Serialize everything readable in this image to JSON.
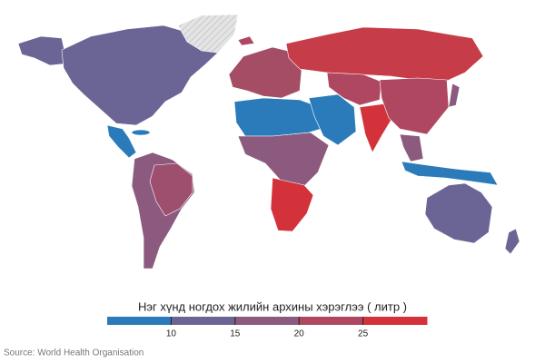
{
  "legend": {
    "title": "Нэг хүнд ногдох жилийн архины хэрэглээ ( литр )",
    "lim": [
      5,
      30
    ],
    "ticks": [
      10,
      15,
      20,
      25
    ],
    "colors": [
      "#2b7bba",
      "#6b6596",
      "#8c5a7f",
      "#b04760",
      "#d4323a"
    ]
  },
  "source": "Source: World Health Organisation"
}
